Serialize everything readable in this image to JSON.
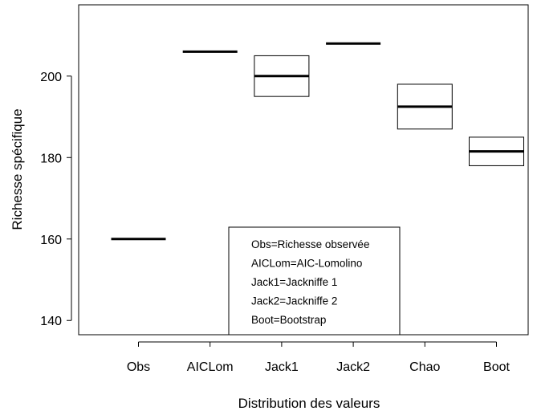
{
  "chart_data": {
    "type": "boxplot",
    "title": "",
    "xlabel": "Distribution des valeurs",
    "ylabel": "Richesse spécifique",
    "ylim": [
      136.5,
      217.5
    ],
    "yticks": [
      140,
      160,
      180,
      200
    ],
    "categories": [
      "Obs",
      "AICLom",
      "Jack1",
      "Jack2",
      "Chao",
      "Boot"
    ],
    "boxes": [
      {
        "category": "Obs",
        "low": 160,
        "q1": 160,
        "median": 160,
        "q3": 160,
        "high": 160
      },
      {
        "category": "AICLom",
        "low": 206,
        "q1": 206,
        "median": 206,
        "q3": 206,
        "high": 206
      },
      {
        "category": "Jack1",
        "low": 195,
        "q1": 195,
        "median": 200,
        "q3": 205,
        "high": 205
      },
      {
        "category": "Jack2",
        "low": 208,
        "q1": 208,
        "median": 208,
        "q3": 208,
        "high": 208
      },
      {
        "category": "Chao",
        "low": 187,
        "q1": 187,
        "median": 192.5,
        "q3": 198,
        "high": 198
      },
      {
        "category": "Boot",
        "low": 178,
        "q1": 178,
        "median": 181.5,
        "q3": 185,
        "high": 185
      }
    ],
    "legend": {
      "position": "bottom-center",
      "entries": [
        "Obs=Richesse observée",
        "AICLom=AIC-Lomolino",
        "Jack1=Jackniffe 1",
        "Jack2=Jackniffe 2",
        "Boot=Bootstrap"
      ]
    },
    "grid": false
  }
}
